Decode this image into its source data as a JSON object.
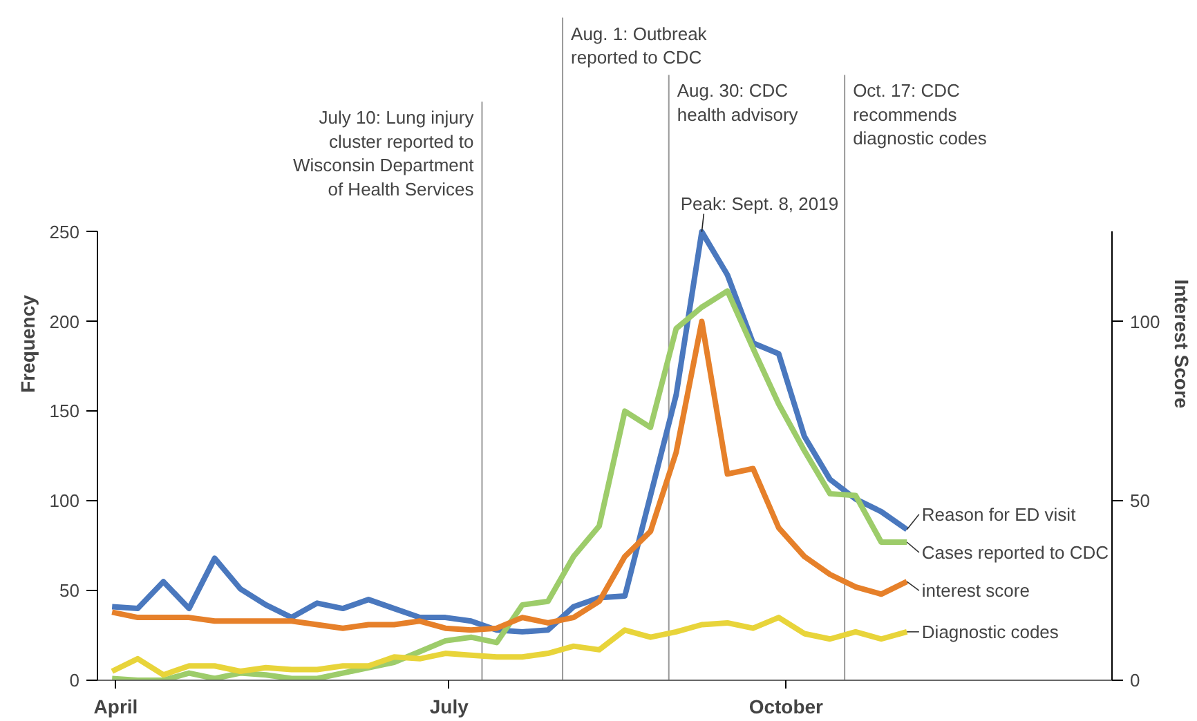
{
  "chart_data": {
    "type": "line",
    "ylabel": "Frequency",
    "y2label": "Interest Score",
    "x": [
      "2019-03-31",
      "2019-04-07",
      "2019-04-14",
      "2019-04-21",
      "2019-04-28",
      "2019-05-05",
      "2019-05-12",
      "2019-05-19",
      "2019-05-26",
      "2019-06-02",
      "2019-06-09",
      "2019-06-16",
      "2019-06-23",
      "2019-06-30",
      "2019-07-07",
      "2019-07-14",
      "2019-07-21",
      "2019-07-28",
      "2019-08-04",
      "2019-08-11",
      "2019-08-18",
      "2019-08-25",
      "2019-09-01",
      "2019-09-08",
      "2019-09-15",
      "2019-09-22",
      "2019-09-29",
      "2019-10-06",
      "2019-10-13",
      "2019-10-20",
      "2019-10-27",
      "2019-11-03"
    ],
    "xlim": [
      "2019-03-27",
      "2019-12-29"
    ],
    "xticks": [
      {
        "value": "2019-04-01",
        "label": "April"
      },
      {
        "value": "2019-07-01",
        "label": "July"
      },
      {
        "value": "2019-10-01",
        "label": "October"
      }
    ],
    "ylim": [
      0,
      250
    ],
    "yticks": [
      0,
      50,
      100,
      150,
      200,
      250
    ],
    "y2lim": [
      0,
      125
    ],
    "y2ticks": [
      0,
      50,
      100
    ],
    "series": [
      {
        "name": "Reason for ED visit",
        "color": "#4a78be",
        "values": [
          41,
          40,
          55,
          40,
          68,
          51,
          42,
          35,
          43,
          40,
          45,
          40,
          35,
          35,
          33,
          28,
          27,
          28,
          41,
          46,
          47,
          103,
          159,
          250,
          226,
          188,
          182,
          136,
          112,
          101,
          94,
          84
        ]
      },
      {
        "name": "Cases reported to CDC",
        "color": "#9dcc6a",
        "values": [
          1,
          0,
          0,
          4,
          1,
          4,
          3,
          1,
          1,
          4,
          7,
          10,
          16,
          22,
          24,
          21,
          42,
          44,
          69,
          86,
          150,
          141,
          196,
          208,
          217,
          185,
          154,
          128,
          104,
          103,
          77,
          77
        ]
      },
      {
        "name": "interest score",
        "color": "#e6802a",
        "axis": "y2",
        "values": [
          19,
          17.5,
          17.5,
          17.5,
          16.5,
          16.5,
          16.5,
          16.5,
          15.5,
          14.5,
          15.5,
          15.5,
          16.5,
          14.5,
          14,
          14.5,
          17.5,
          16,
          17.5,
          22,
          34.5,
          41.5,
          63.5,
          100,
          57.5,
          59,
          42.5,
          34.5,
          29.5,
          26,
          24,
          27.5
        ]
      },
      {
        "name": "Diagnostic codes",
        "color": "#e8d43a",
        "values": [
          5,
          12,
          3,
          8,
          8,
          5,
          7,
          6,
          6,
          8,
          8,
          13,
          12,
          15,
          14,
          13,
          13,
          15,
          19,
          17,
          28,
          24,
          27,
          31,
          32,
          29,
          35,
          26,
          23,
          27,
          23,
          27
        ]
      }
    ],
    "ref_lines": [
      {
        "axis": "x",
        "value": "2019-07-10",
        "label": "July 10: Lung injury\ncluster reported to\nWisconsin Department\nof Health Services",
        "color": "#999999"
      },
      {
        "axis": "x",
        "value": "2019-08-01",
        "label": "Aug. 1: Outbreak\nreported to CDC",
        "color": "#999999"
      },
      {
        "axis": "x",
        "value": "2019-08-30",
        "label": "Aug. 30:  CDC\nhealth advisory",
        "color": "#999999"
      },
      {
        "axis": "x",
        "value": "2019-10-17",
        "label": "Oct. 17:  CDC\nrecommends\ndiagnostic codes",
        "color": "#999999"
      }
    ],
    "annotations": [
      {
        "text": "Peak: Sept. 8, 2019",
        "x": "2019-09-08",
        "y": 250
      }
    ],
    "grid": false,
    "marker": "none",
    "line_style": "solid"
  }
}
